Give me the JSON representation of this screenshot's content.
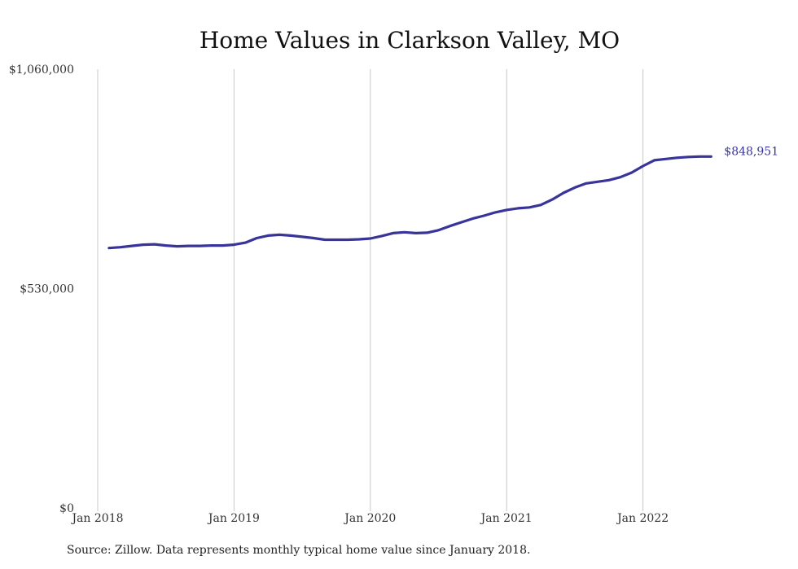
{
  "chart_data": {
    "type": "line",
    "title": "Home Values in Clarkson Valley, MO",
    "ylim": [
      0,
      1060000
    ],
    "y_ticks": [
      {
        "value": 1060000,
        "label": "$1,060,000"
      },
      {
        "value": 530000,
        "label": "$530,000"
      },
      {
        "value": 0,
        "label": "$0"
      }
    ],
    "x_ticks": [
      {
        "value": 0,
        "label": "Jan 2018"
      },
      {
        "value": 12,
        "label": "Jan 2019"
      },
      {
        "value": 24,
        "label": "Jan 2020"
      },
      {
        "value": 36,
        "label": "Jan 2021"
      },
      {
        "value": 48,
        "label": "Jan 2022"
      }
    ],
    "grid": {
      "vertical": true,
      "horizontal": false
    },
    "series": [
      {
        "color": "#38349a",
        "x": [
          1,
          2,
          3,
          4,
          5,
          6,
          7,
          8,
          9,
          10,
          11,
          12,
          13,
          14,
          15,
          16,
          17,
          18,
          19,
          20,
          21,
          22,
          23,
          24,
          25,
          26,
          27,
          28,
          29,
          30,
          31,
          32,
          33,
          34,
          35,
          36,
          37,
          38,
          39,
          40,
          41,
          42,
          43,
          44,
          45,
          46,
          47,
          48,
          49,
          50,
          51,
          52,
          53,
          54
        ],
        "values": [
          628000,
          630000,
          633000,
          636000,
          637000,
          634000,
          632000,
          633000,
          633000,
          634000,
          634000,
          636000,
          641000,
          652000,
          658000,
          660000,
          658000,
          655000,
          652000,
          648000,
          648000,
          648000,
          649000,
          651000,
          657000,
          664000,
          666000,
          664000,
          665000,
          671000,
          681000,
          690000,
          699000,
          706000,
          714000,
          720000,
          724000,
          726000,
          732000,
          745000,
          761000,
          774000,
          784000,
          788000,
          792000,
          799000,
          810000,
          826000,
          840000,
          843000,
          846000,
          848000,
          849000,
          848951
        ]
      }
    ],
    "end_label": "$848,951"
  },
  "source": "Source: Zillow. Data represents monthly typical home value since January 2018."
}
